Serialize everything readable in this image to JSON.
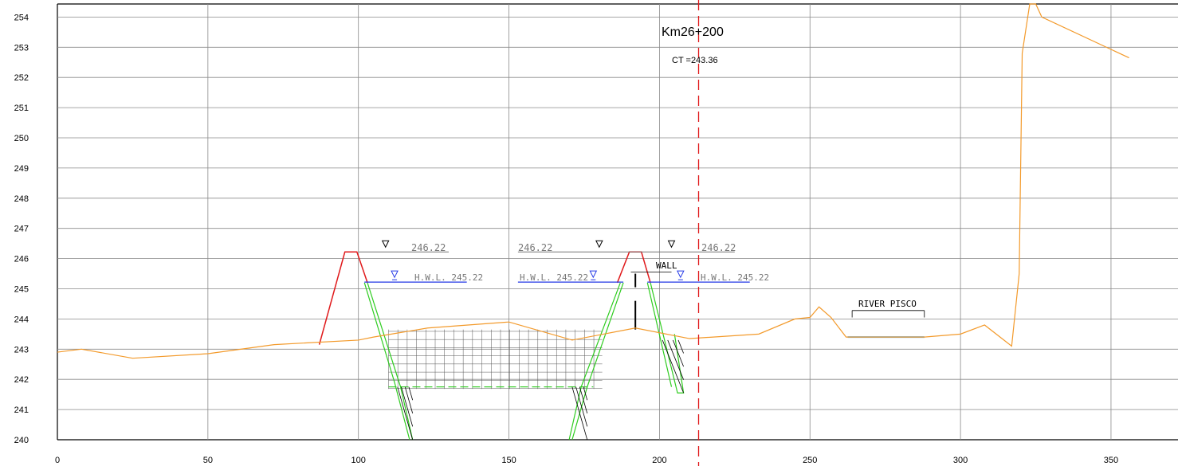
{
  "title": "Km26+200",
  "ct_label": "CT =243.36",
  "wall_label": "WALL",
  "river_label": "RIVER PISCO",
  "water_levels": {
    "top_value": "246.22",
    "hwl_label": "H.W.L. 245.22",
    "top_level": 246.22,
    "hwl_level": 245.22
  },
  "centerline_x": 213,
  "colors": {
    "ground": "#f39a2b",
    "dike": "#e0191b",
    "excavation": "#2ecc1f",
    "hwl": "#2237e6",
    "river": "#55a9e6",
    "centerline": "#e0191b",
    "grid": "#8a8a8a"
  },
  "axes": {
    "x_ticks": [
      "0",
      "50",
      "100",
      "150",
      "200",
      "250",
      "300",
      "350"
    ],
    "y_ticks": [
      "240",
      "241",
      "242",
      "243",
      "244",
      "245",
      "246",
      "247",
      "248",
      "249",
      "250",
      "251",
      "252",
      "253",
      "254"
    ],
    "x_range": [
      0,
      374
    ],
    "y_range": [
      240,
      254.3
    ]
  },
  "chart_data": {
    "type": "line",
    "xlabel": "",
    "ylabel": "",
    "series": [
      {
        "values": [
          [
            0,
            242.9
          ],
          [
            8,
            243.0
          ],
          [
            25,
            242.7
          ],
          [
            50,
            242.85
          ],
          [
            72,
            243.15
          ],
          [
            100,
            243.3
          ],
          [
            105,
            243.4
          ],
          [
            123,
            243.7
          ],
          [
            150,
            243.9
          ],
          [
            171,
            243.3
          ],
          [
            192,
            243.7
          ],
          [
            210,
            243.35
          ],
          [
            233,
            243.5
          ],
          [
            245,
            244.0
          ],
          [
            250,
            244.05
          ],
          [
            253,
            244.4
          ],
          [
            257,
            244.05
          ],
          [
            262,
            243.4
          ],
          [
            288,
            243.4
          ],
          [
            300,
            243.5
          ],
          [
            308,
            243.8
          ],
          [
            317,
            243.1
          ],
          [
            319.5,
            245.5
          ],
          [
            320.5,
            252.8
          ],
          [
            323,
            254.5
          ],
          [
            325,
            254.5
          ],
          [
            327,
            254.0
          ],
          [
            356,
            252.65
          ]
        ]
      }
    ]
  }
}
